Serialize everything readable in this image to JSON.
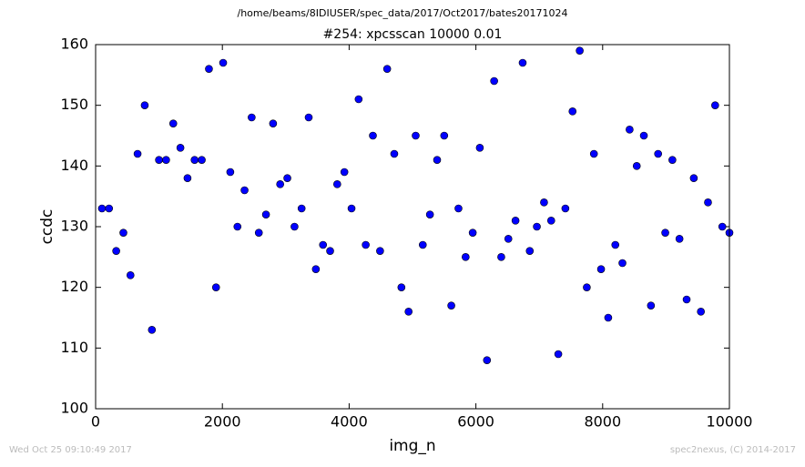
{
  "chart_data": {
    "type": "line",
    "suptitle": "/home/beams/8IDIUSER/spec_data/2017/Oct2017/bates20171024",
    "title": "#254: xpcsscan 10000 0.01",
    "xlabel": "img_n",
    "ylabel": "ccdc",
    "footer_left": "Wed Oct 25 09:10:49 2017",
    "footer_right": "spec2nexus, (C) 2014-2017",
    "xlim": [
      0,
      10000
    ],
    "xticks": [
      0,
      2000,
      4000,
      6000,
      8000,
      10000
    ],
    "ylim": [
      100,
      160
    ],
    "yticks": [
      100,
      110,
      120,
      130,
      140,
      150,
      160
    ],
    "x": [
      100,
      212,
      325,
      438,
      550,
      662,
      775,
      888,
      1000,
      1112,
      1225,
      1338,
      1450,
      1562,
      1675,
      1788,
      1900,
      2012,
      2125,
      2238,
      2350,
      2462,
      2575,
      2688,
      2800,
      2912,
      3025,
      3138,
      3250,
      3362,
      3475,
      3588,
      3700,
      3812,
      3925,
      4038,
      4150,
      4262,
      4375,
      4488,
      4600,
      4712,
      4825,
      4938,
      5050,
      5162,
      5275,
      5388,
      5500,
      5612,
      5725,
      5838,
      5950,
      6062,
      6175,
      6288,
      6400,
      6512,
      6625,
      6738,
      6850,
      6962,
      7075,
      7188,
      7300,
      7412,
      7525,
      7638,
      7750,
      7862,
      7975,
      8088,
      8200,
      8312,
      8425,
      8538,
      8650,
      8762,
      8875,
      8988,
      9100,
      9212,
      9325,
      9438,
      9550,
      9662,
      9775,
      9888,
      10000
    ],
    "series": [
      {
        "color": "#0000ff",
        "values": [
          133,
          133,
          126,
          129,
          122,
          142,
          150,
          113,
          141,
          141,
          147,
          143,
          138,
          141,
          141,
          156,
          120,
          157,
          139,
          130,
          136,
          148,
          129,
          132,
          147,
          137,
          138,
          130,
          133,
          148,
          123,
          127,
          126,
          137,
          139,
          133,
          151,
          127,
          145,
          126,
          156,
          142,
          120,
          116,
          145,
          127,
          132,
          141,
          145,
          117,
          133,
          125,
          129,
          143,
          108,
          154,
          125,
          128,
          131,
          157,
          126,
          130,
          134,
          131,
          109,
          133,
          149,
          159,
          120,
          142,
          123,
          115,
          127,
          124,
          146,
          140,
          145,
          117,
          142,
          129,
          141,
          128,
          118,
          138,
          116,
          134,
          150,
          130,
          129
        ]
      }
    ]
  }
}
